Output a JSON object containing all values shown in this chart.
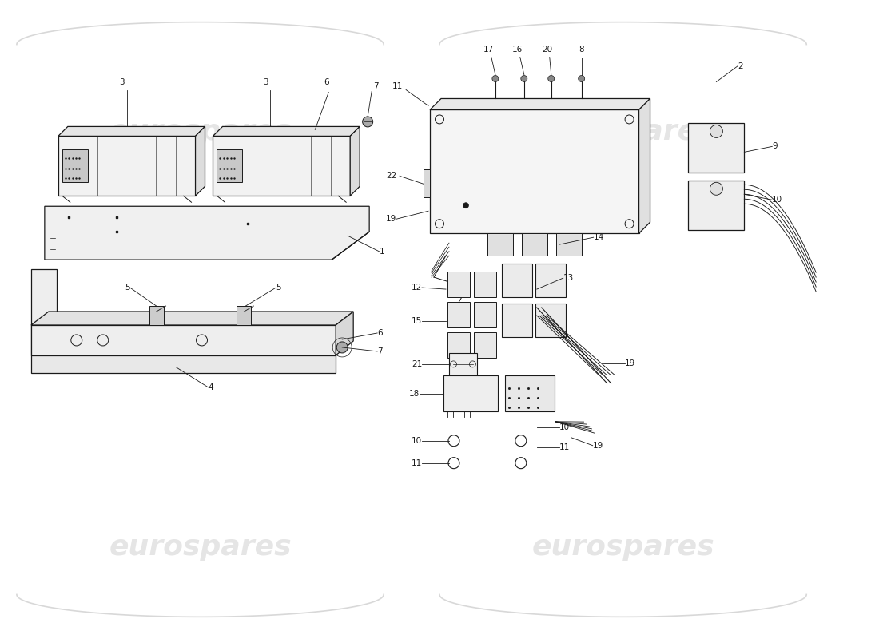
{
  "bg_color": "#ffffff",
  "line_color": "#1a1a1a",
  "fig_width": 11.0,
  "fig_height": 8.0,
  "dpi": 100,
  "watermark_text": "eurospares",
  "watermark_color": "#d0d0d0",
  "watermark_alpha": 0.55,
  "watermark_fontsize": 26
}
